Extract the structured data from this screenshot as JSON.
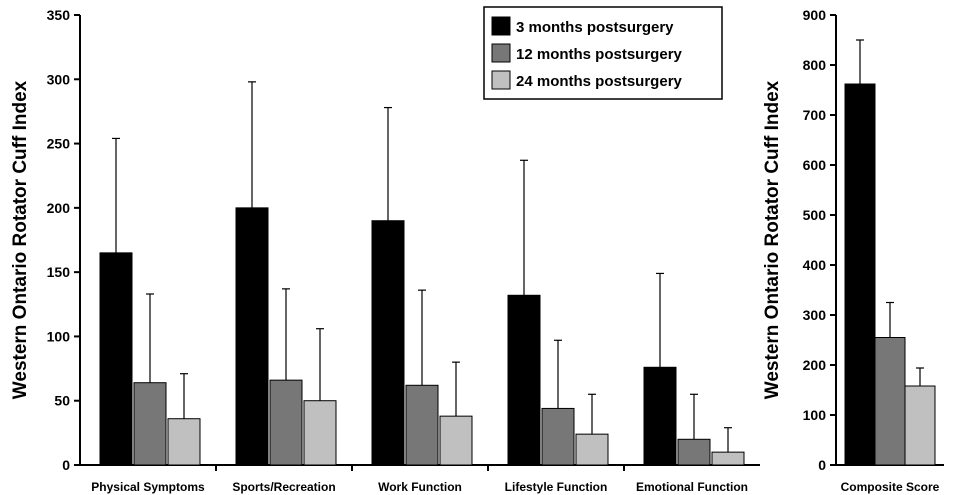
{
  "chart_data": [
    {
      "type": "bar",
      "ylabel": "Western Ontario Rotator Cuff Index",
      "ylim": [
        0,
        350
      ],
      "yticks": [
        0,
        50,
        100,
        150,
        200,
        250,
        300,
        350
      ],
      "categories": [
        "Physical Symptoms",
        "Sports/Recreation",
        "Work Function",
        "Lifestyle Function",
        "Emotional Function"
      ],
      "series": [
        {
          "name": "3 months postsurgery",
          "color": "#000000",
          "values": [
            165,
            200,
            190,
            132,
            76
          ],
          "error_upper": [
            254,
            298,
            278,
            237,
            149
          ]
        },
        {
          "name": "12 months postsurgery",
          "color": "#777777",
          "values": [
            64,
            66,
            62,
            44,
            20
          ],
          "error_upper": [
            133,
            137,
            136,
            97,
            55
          ]
        },
        {
          "name": "24 months postsurgery",
          "color": "#c0c0c0",
          "values": [
            36,
            50,
            38,
            24,
            10
          ],
          "error_upper": [
            71,
            106,
            80,
            55,
            29
          ]
        }
      ],
      "legend": "top-right"
    },
    {
      "type": "bar",
      "ylabel": "Western Ontario Rotator Cuff Index",
      "ylim": [
        0,
        900
      ],
      "yticks": [
        0,
        100,
        200,
        300,
        400,
        500,
        600,
        700,
        800,
        900
      ],
      "categories": [
        "Composite Score"
      ],
      "series": [
        {
          "name": "3 months postsurgery",
          "color": "#000000",
          "values": [
            762
          ],
          "error_upper": [
            850
          ]
        },
        {
          "name": "12 months postsurgery",
          "color": "#777777",
          "values": [
            255
          ],
          "error_upper": [
            325
          ]
        },
        {
          "name": "24 months postsurgery",
          "color": "#c0c0c0",
          "values": [
            158
          ],
          "error_upper": [
            194
          ]
        }
      ]
    }
  ]
}
